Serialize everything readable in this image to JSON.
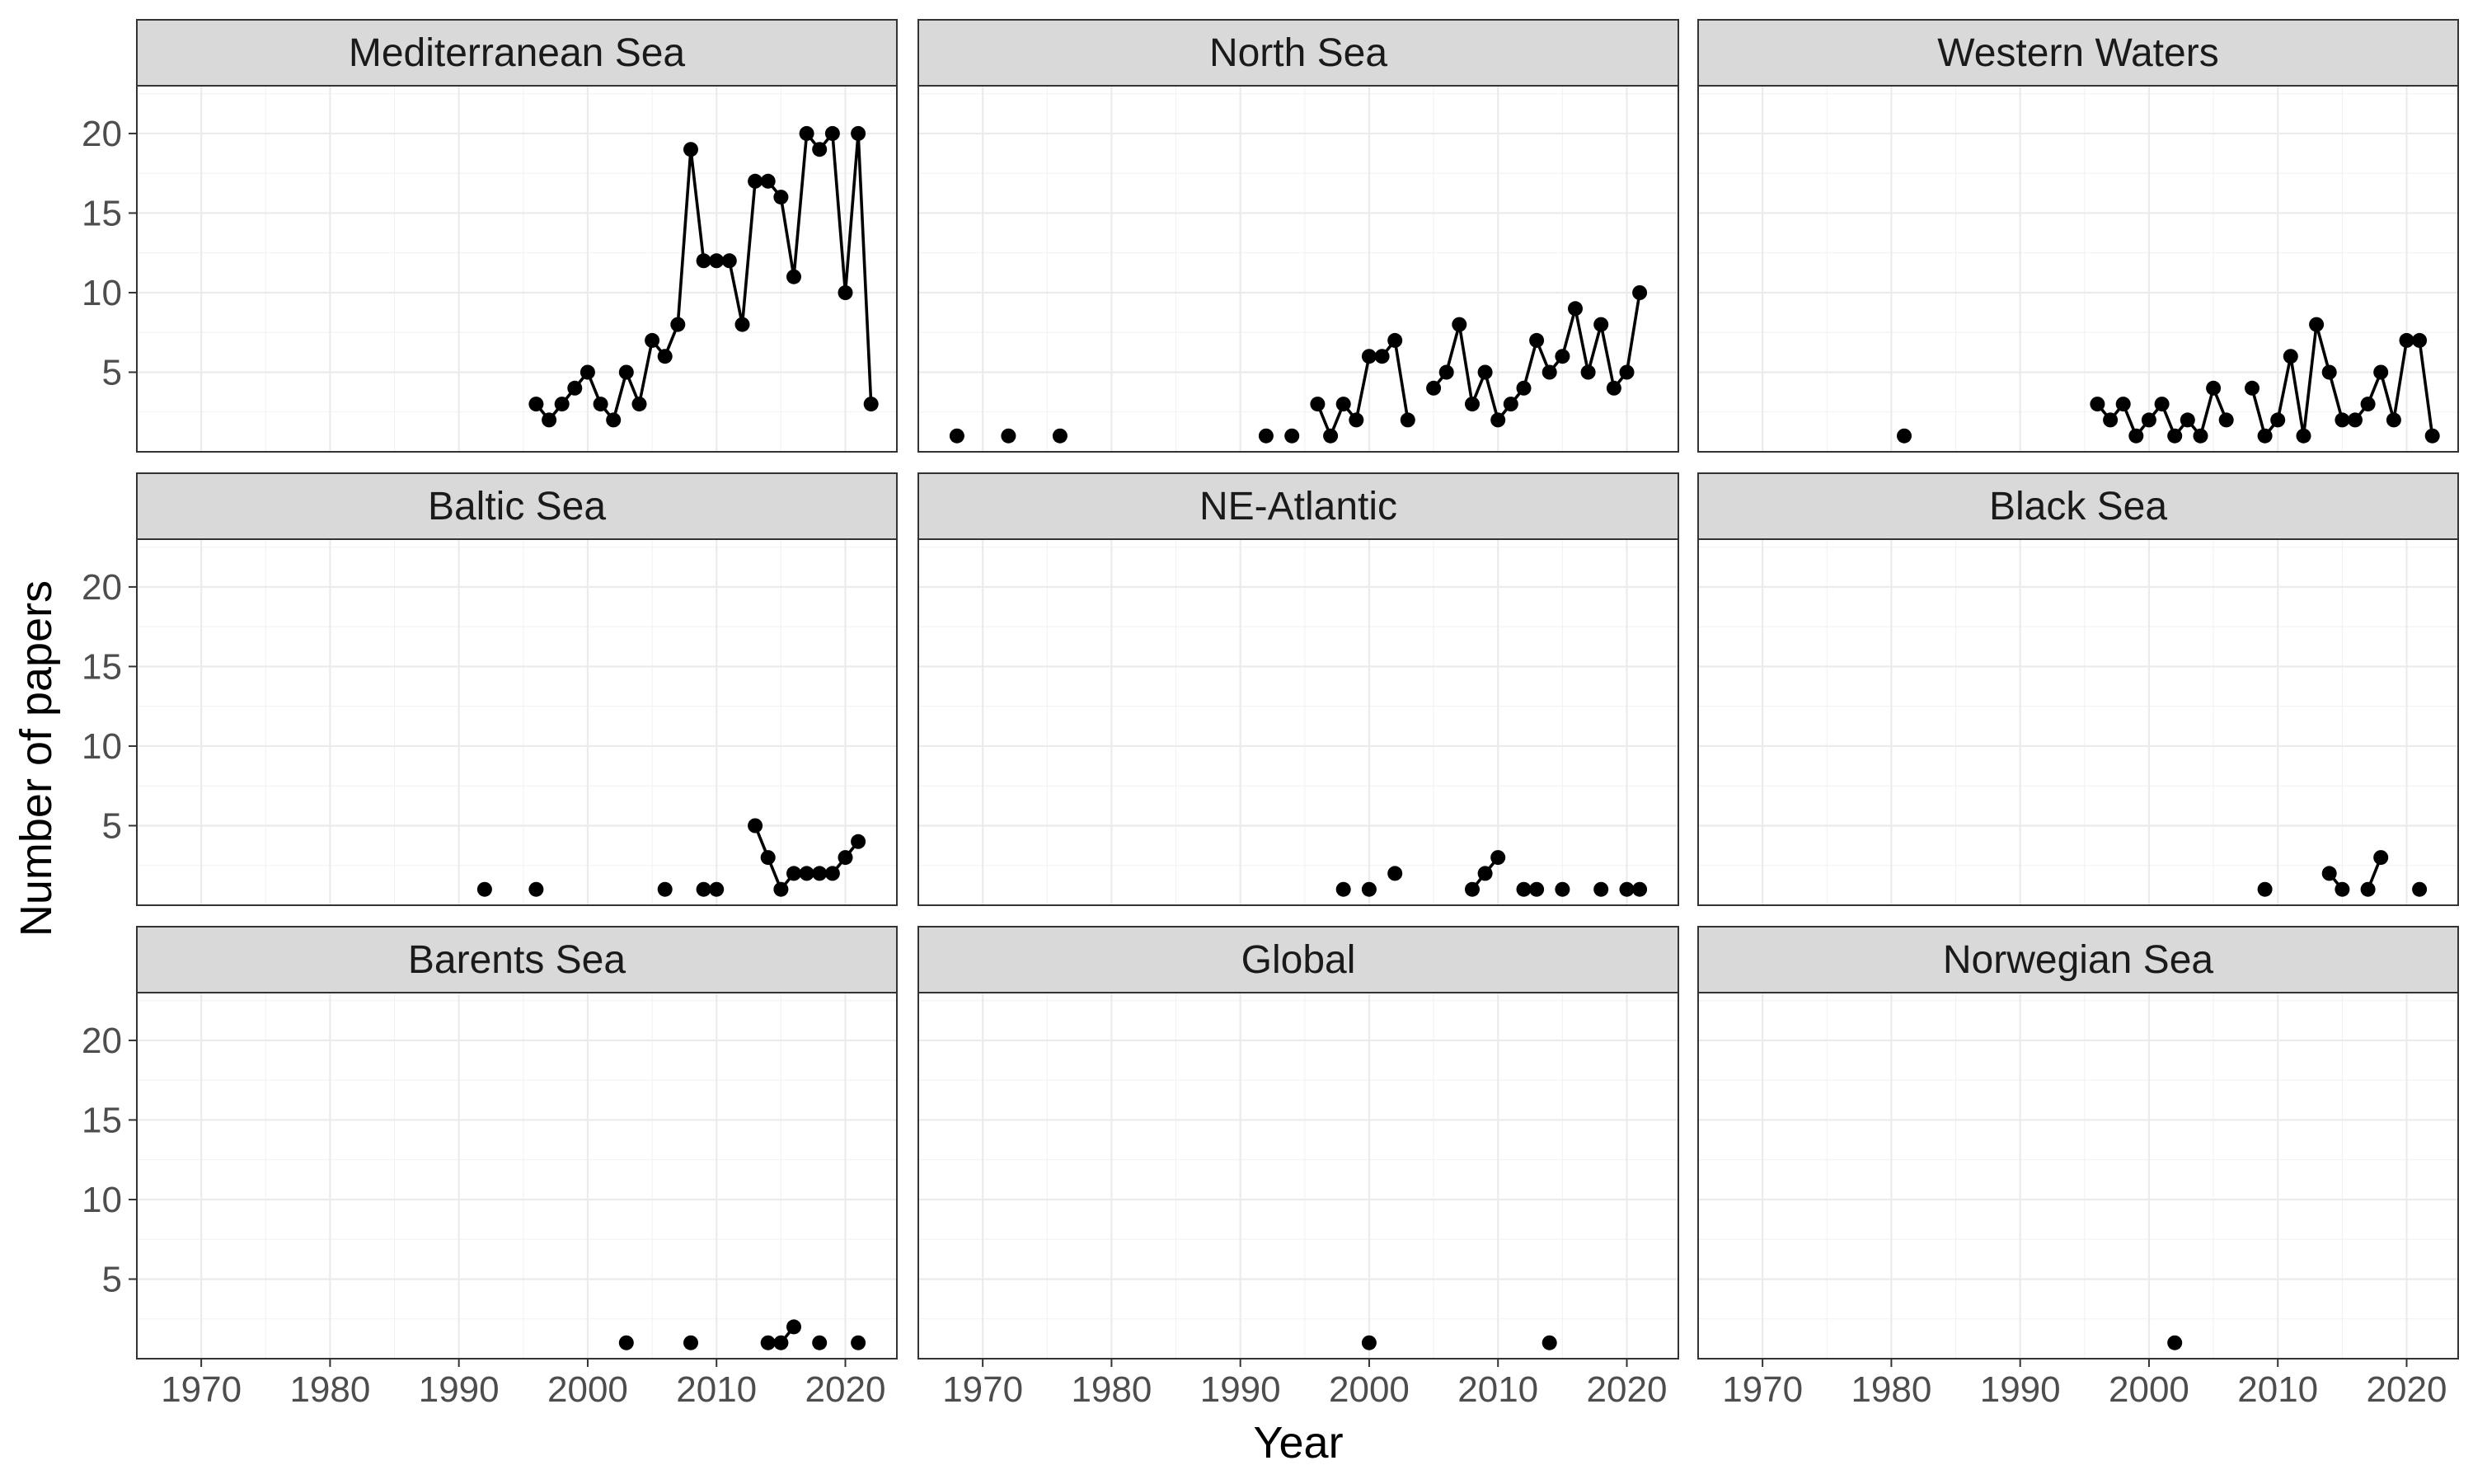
{
  "chart_data": {
    "type": "line",
    "xlabel": "Year",
    "ylabel": "Number of papers",
    "xlim": [
      1965,
      2024
    ],
    "ylim": [
      0,
      23
    ],
    "x_ticks": [
      1970,
      1980,
      1990,
      2000,
      2010,
      2020
    ],
    "y_ticks": [
      5,
      10,
      15,
      20
    ],
    "grid": true,
    "facets": [
      {
        "name": "Mediterranean Sea",
        "x": [
          1996,
          1997,
          1998,
          1999,
          2000,
          2001,
          2002,
          2003,
          2004,
          2005,
          2006,
          2007,
          2008,
          2009,
          2010,
          2011,
          2012,
          2013,
          2014,
          2015,
          2016,
          2017,
          2018,
          2019,
          2020,
          2021,
          2022
        ],
        "y": [
          3,
          2,
          3,
          4,
          5,
          3,
          2,
          5,
          3,
          7,
          6,
          8,
          19,
          12,
          12,
          12,
          8,
          17,
          17,
          16,
          11,
          20,
          19,
          20,
          10,
          20,
          3
        ]
      },
      {
        "name": "North Sea",
        "x": [
          1968,
          1972,
          1976,
          1992,
          1994,
          1996,
          1997,
          1998,
          1999,
          2000,
          2001,
          2002,
          2003,
          2005,
          2006,
          2007,
          2008,
          2009,
          2010,
          2011,
          2012,
          2013,
          2014,
          2015,
          2016,
          2017,
          2018,
          2019,
          2020,
          2021
        ],
        "y": [
          1,
          1,
          1,
          1,
          1,
          3,
          1,
          3,
          2,
          6,
          6,
          7,
          2,
          4,
          5,
          8,
          3,
          5,
          2,
          3,
          4,
          7,
          5,
          6,
          9,
          5,
          8,
          4,
          5,
          10
        ]
      },
      {
        "name": "Western Waters",
        "x": [
          1981,
          1996,
          1997,
          1998,
          1999,
          2000,
          2001,
          2002,
          2003,
          2004,
          2005,
          2006,
          2008,
          2009,
          2010,
          2011,
          2012,
          2013,
          2014,
          2015,
          2016,
          2017,
          2018,
          2019,
          2020,
          2021,
          2022
        ],
        "y": [
          1,
          3,
          2,
          3,
          1,
          2,
          3,
          1,
          2,
          1,
          4,
          2,
          4,
          1,
          2,
          6,
          1,
          8,
          5,
          2,
          2,
          3,
          5,
          2,
          7,
          7,
          1
        ]
      },
      {
        "name": "Baltic Sea",
        "x": [
          1992,
          1996,
          2006,
          2009,
          2010,
          2013,
          2014,
          2015,
          2016,
          2017,
          2018,
          2019,
          2020,
          2021
        ],
        "y": [
          1,
          1,
          1,
          1,
          1,
          5,
          3,
          1,
          2,
          2,
          2,
          2,
          3,
          4
        ]
      },
      {
        "name": "NE-Atlantic",
        "x": [
          1998,
          2000,
          2002,
          2008,
          2009,
          2010,
          2012,
          2013,
          2015,
          2018,
          2020,
          2021
        ],
        "y": [
          1,
          1,
          2,
          1,
          2,
          3,
          1,
          1,
          1,
          1,
          1,
          1
        ]
      },
      {
        "name": "Black Sea",
        "x": [
          2009,
          2014,
          2015,
          2017,
          2018,
          2021
        ],
        "y": [
          1,
          2,
          1,
          1,
          3,
          1
        ]
      },
      {
        "name": "Barents Sea",
        "x": [
          2003,
          2008,
          2014,
          2015,
          2016,
          2018,
          2021
        ],
        "y": [
          1,
          1,
          1,
          1,
          2,
          1,
          1
        ]
      },
      {
        "name": "Global",
        "x": [
          2000,
          2014
        ],
        "y": [
          1,
          1
        ]
      },
      {
        "name": "Norwegian Sea",
        "x": [
          2002
        ],
        "y": [
          1
        ]
      }
    ]
  }
}
